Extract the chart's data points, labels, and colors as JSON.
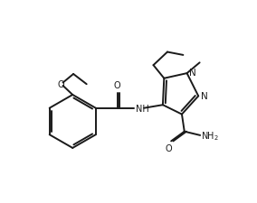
{
  "bg_color": "#ffffff",
  "line_color": "#1a1a1a",
  "lw": 1.4,
  "figsize": [
    2.84,
    2.26
  ],
  "dpi": 100,
  "xlim": [
    0,
    10
  ],
  "ylim": [
    0,
    8
  ]
}
